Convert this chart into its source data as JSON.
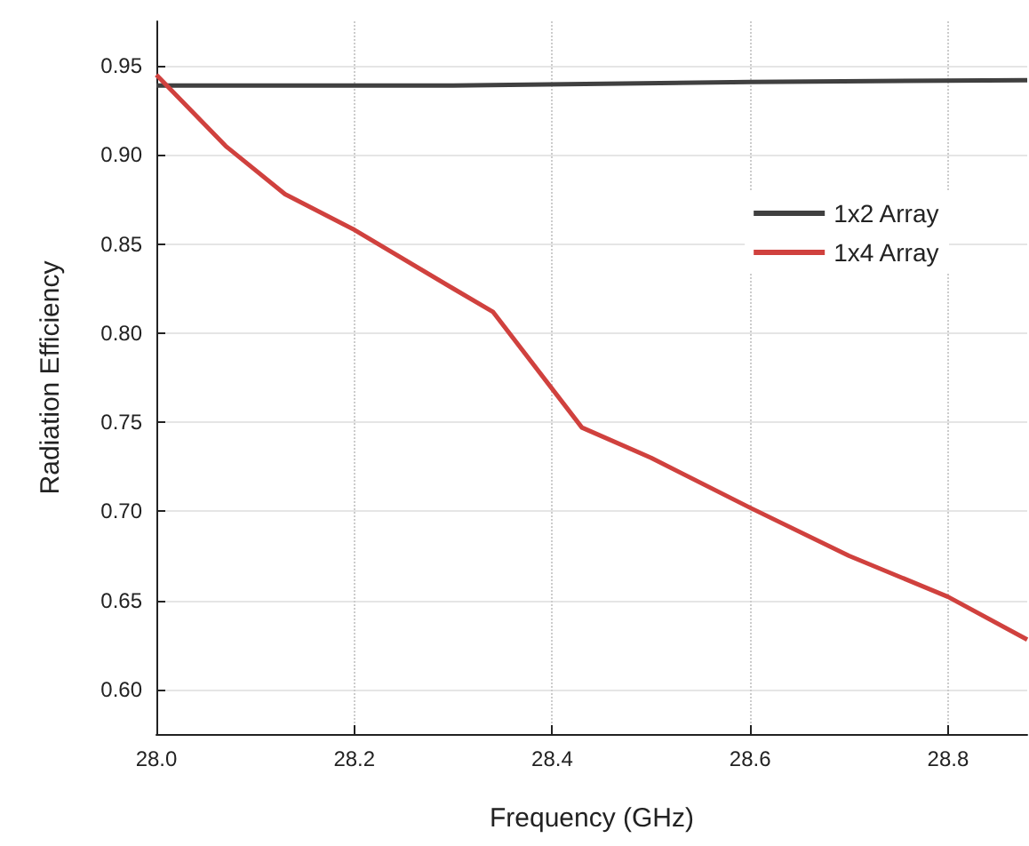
{
  "chart_data": {
    "type": "line",
    "xlabel": "Frequency (GHz)",
    "ylabel": "Radiation Efficiency",
    "xlim": [
      28.0,
      28.88
    ],
    "xticks": [
      {
        "value": 28.0,
        "label": "28.0"
      },
      28.2,
      28.4,
      28.6,
      28.8
    ],
    "ylim": [
      0.575,
      0.975
    ],
    "yticks": [
      {
        "value": 0.6,
        "label": "0.60"
      },
      0.65,
      {
        "value": 0.7,
        "label": "0.70"
      },
      0.75,
      {
        "value": 0.8,
        "label": "0.80"
      },
      0.85,
      {
        "value": 0.9,
        "label": "0.90"
      },
      0.95
    ],
    "grid": true,
    "legend": "top right",
    "marker": "none",
    "line_style": "solid",
    "series": [
      {
        "name": "1x2 Array",
        "color": "#404040",
        "x": [
          28.0,
          28.3,
          28.6,
          28.88
        ],
        "values": [
          0.939,
          0.939,
          0.941,
          0.942
        ]
      },
      {
        "name": "1x4 Array",
        "color": "#d0413e",
        "x": [
          28.0,
          28.07,
          28.13,
          28.2,
          28.3,
          28.34,
          28.43,
          28.5,
          28.6,
          28.7,
          28.8,
          28.88
        ],
        "values": [
          0.945,
          0.905,
          0.878,
          0.858,
          0.825,
          0.812,
          0.747,
          0.73,
          0.702,
          0.675,
          0.652,
          0.628
        ]
      }
    ]
  }
}
